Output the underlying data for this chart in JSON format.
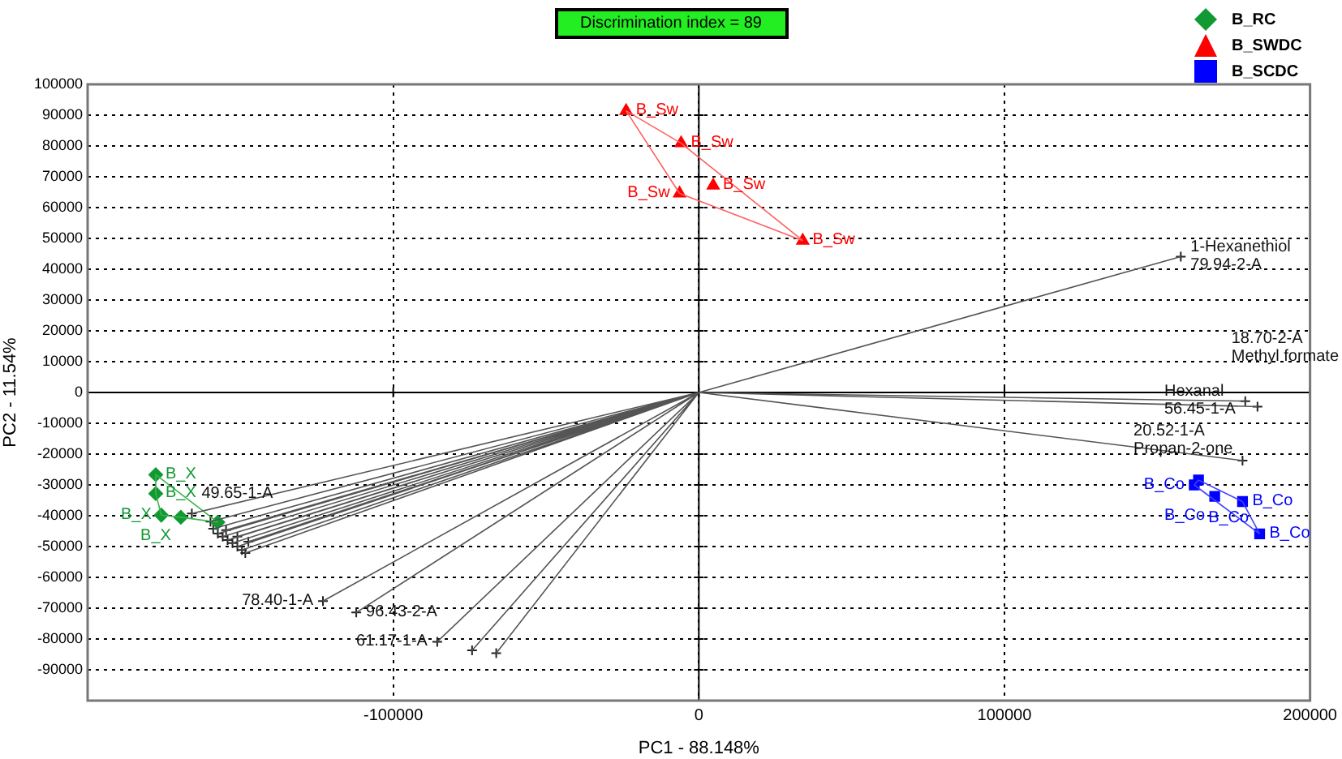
{
  "chart_data": {
    "type": "scatter",
    "xlabel": "PC1 - 88.148%",
    "ylabel": "PC2 - 11.54%",
    "xlim": [
      -200000,
      200000
    ],
    "xticks": [
      -100000,
      0,
      100000,
      200000
    ],
    "ylim": [
      -100000,
      100000
    ],
    "yticks": [
      100000,
      90000,
      80000,
      70000,
      60000,
      50000,
      40000,
      30000,
      20000,
      10000,
      0,
      -10000,
      -20000,
      -30000,
      -40000,
      -50000,
      -60000,
      -70000,
      -80000,
      -90000
    ],
    "grid": true,
    "legend": "top right",
    "series": [
      {
        "type": "line",
        "color": "#555555",
        "marker": "none",
        "x": [
          0,
          157700,
          0,
          178800,
          0,
          182800,
          0,
          177900,
          0,
          -123000,
          0,
          -112100,
          0,
          -85600,
          0,
          -74200,
          0,
          -66300,
          0,
          -165900,
          0,
          -159800,
          0,
          -158900,
          0,
          -157400,
          0,
          -155800,
          0,
          -154200,
          0,
          -152600,
          0,
          -151000,
          0,
          -149500,
          0,
          -148400,
          0,
          -154700,
          0,
          -151000,
          0,
          -147400
        ],
        "values": [
          0,
          44100,
          0,
          -2800,
          0,
          -4600,
          0,
          -22100,
          0,
          -67700,
          0,
          -71400,
          0,
          -80900,
          0,
          -83700,
          0,
          -84600,
          0,
          -39300,
          0,
          -41900,
          0,
          -44200,
          0,
          -45800,
          0,
          -46800,
          0,
          -47900,
          0,
          -48900,
          0,
          -50000,
          0,
          -51100,
          0,
          -52100,
          0,
          -44700,
          0,
          -46800,
          0,
          -48400
        ]
      },
      {
        "type": "line",
        "color": "#3cb44b",
        "marker": "none",
        "x": [
          -177700,
          -177700
        ],
        "values": [
          -26700,
          -32800
        ]
      },
      {
        "type": "line",
        "color": "#3cb44b",
        "marker": "none",
        "x": [
          -177700,
          -175900
        ],
        "values": [
          -32800,
          -39800
        ]
      },
      {
        "type": "line",
        "color": "#3cb44b",
        "marker": "none",
        "x": [
          -175900,
          -169500
        ],
        "values": [
          -39800,
          -40500
        ]
      },
      {
        "type": "line",
        "color": "#3cb44b",
        "marker": "none",
        "x": [
          -169500,
          -157400
        ],
        "values": [
          -40500,
          -42100
        ]
      },
      {
        "type": "line",
        "color": "#3cb44b",
        "marker": "none",
        "x": [
          -177700,
          -157400
        ],
        "values": [
          -26700,
          -42100
        ]
      },
      {
        "type": "line",
        "color": "#ff6060",
        "marker": "none",
        "x": [
          -23800,
          -5800
        ],
        "values": [
          91400,
          80900
        ]
      },
      {
        "type": "line",
        "color": "#ff6060",
        "marker": "none",
        "x": [
          -5800,
          34000
        ],
        "values": [
          80900,
          49300
        ]
      },
      {
        "type": "line",
        "color": "#ff6060",
        "marker": "none",
        "x": [
          -6300,
          34000
        ],
        "values": [
          64600,
          49300
        ]
      },
      {
        "type": "line",
        "color": "#ff6060",
        "marker": "none",
        "x": [
          -23800,
          -6300
        ],
        "values": [
          91400,
          64600
        ]
      },
      {
        "type": "line",
        "color": "#4040ff",
        "marker": "none",
        "x": [
          163500,
          177900
        ],
        "values": [
          -28400,
          -35400
        ]
      },
      {
        "type": "line",
        "color": "#4040ff",
        "marker": "none",
        "x": [
          177900,
          183500
        ],
        "values": [
          -35400,
          -45900
        ]
      },
      {
        "type": "line",
        "color": "#4040ff",
        "marker": "none",
        "x": [
          162100,
          183500
        ],
        "values": [
          -30000,
          -45900
        ]
      },
      {
        "type": "line",
        "color": "#4040ff",
        "marker": "none",
        "x": [
          162100,
          163500
        ],
        "values": [
          -30000,
          -28400
        ]
      },
      {
        "type": "scatter",
        "name": "B_RC",
        "color": "#119933",
        "marker": "diamond",
        "x": [
          -177700,
          -177700,
          -175900,
          -169500,
          -157400
        ],
        "values": [
          -26700,
          -32800,
          -39800,
          -40500,
          -42100
        ]
      },
      {
        "type": "scatter",
        "name": "B_SWDC",
        "color": "#ff0000",
        "marker": "triangle",
        "x": [
          -23800,
          -5800,
          4700,
          -6300,
          34000
        ],
        "values": [
          91400,
          80900,
          67200,
          64600,
          49300
        ]
      },
      {
        "type": "scatter",
        "name": "B_SCDC",
        "color": "#0000ff",
        "marker": "square",
        "x": [
          162100,
          163500,
          168800,
          177900,
          183500
        ],
        "values": [
          -30000,
          -28400,
          -33700,
          -35400,
          -45900
        ]
      },
      {
        "type": "scatter",
        "color": "#222222",
        "marker": "cross",
        "x": [
          157700,
          178800,
          182800,
          177900,
          -123000,
          -112100,
          -85600,
          -74200,
          -66300,
          -165900,
          -159800,
          -158900,
          -157400,
          -155800,
          -154200,
          -152600,
          -151000,
          -149500,
          -148400,
          -154700,
          -151000,
          -147400
        ],
        "values": [
          44100,
          -2800,
          -4600,
          -22100,
          -67700,
          -71400,
          -80900,
          -83700,
          -84600,
          -39300,
          -41900,
          -44200,
          -45800,
          -46800,
          -47900,
          -48900,
          -50000,
          -51100,
          -52100,
          -44700,
          -46800,
          -48400
        ]
      }
    ],
    "annotations": [
      "Discrimination index = 89",
      {
        "text": "1-Hexanethiol\n79.94-2-A",
        "x": 157700,
        "y": 44100
      },
      {
        "text": "Hexanal\n56.45-1-A",
        "x": 178800,
        "y": -2800
      },
      {
        "text": "18.70-2-A\nMethyl formate",
        "x": 182800,
        "y": -4600
      },
      {
        "text": "20.52-1-A\nPropan-2-one",
        "x": 177900,
        "y": -22100
      },
      {
        "text": "78.40-1-A",
        "x": -123000,
        "y": -67700
      },
      {
        "text": "96.43-2-A",
        "x": -112100,
        "y": -71400
      },
      {
        "text": "61.17-1-A",
        "x": -85600,
        "y": -80900
      },
      {
        "text": "49.65-1-A",
        "x": -165900,
        "y": -39300
      },
      {
        "text": "B_X",
        "x": -177700,
        "y": -26700
      },
      {
        "text": "B_X",
        "x": -177700,
        "y": -32800
      },
      {
        "text": "B_X",
        "x": -175900,
        "y": -39800
      },
      {
        "text": "B_X",
        "x": -169500,
        "y": -40500
      },
      {
        "text": "B_Sw",
        "x": -23800,
        "y": 91400
      },
      {
        "text": "B_Sw",
        "x": -5800,
        "y": 80900
      },
      {
        "text": "B_Sw",
        "x": 4700,
        "y": 67200
      },
      {
        "text": "B_Sw",
        "x": -6300,
        "y": 64600
      },
      {
        "text": "B_Sw",
        "x": 34000,
        "y": 49300
      },
      {
        "text": "B_Co",
        "x": 162100,
        "y": -30000
      },
      {
        "text": "B_Co",
        "x": 163500,
        "y": -28400
      },
      {
        "text": "B_Co",
        "x": 168800,
        "y": -33700
      },
      {
        "text": "B_Co",
        "x": 177900,
        "y": -35400
      },
      {
        "text": "B_Co",
        "x": 183500,
        "y": -45900
      }
    ]
  }
}
